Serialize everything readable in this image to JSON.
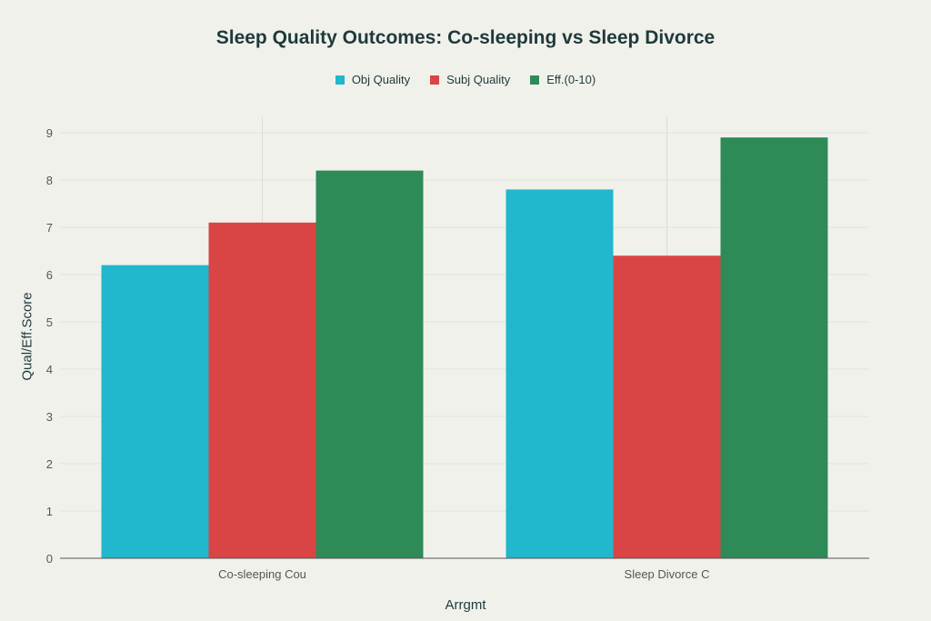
{
  "chart_data": {
    "type": "bar",
    "title": "Sleep Quality Outcomes: Co-sleeping vs Sleep Divorce",
    "xlabel": "Arrgmt",
    "ylabel": "Qual/Eff.Score",
    "categories": [
      "Co-sleeping Cou",
      "Sleep Divorce C"
    ],
    "series": [
      {
        "name": "Obj Quality",
        "color": "#21b7cc",
        "values": [
          6.2,
          7.8
        ]
      },
      {
        "name": "Subj Quality",
        "color": "#d94545",
        "values": [
          7.1,
          6.4
        ]
      },
      {
        "name": "Eff.(0-10)",
        "color": "#2e8a57",
        "values": [
          8.2,
          8.9
        ]
      }
    ],
    "ylim": [
      0,
      9.35
    ],
    "yticks": [
      0,
      1,
      2,
      3,
      4,
      5,
      6,
      7,
      8,
      9
    ],
    "grid": true,
    "legend_position": "top-center"
  }
}
